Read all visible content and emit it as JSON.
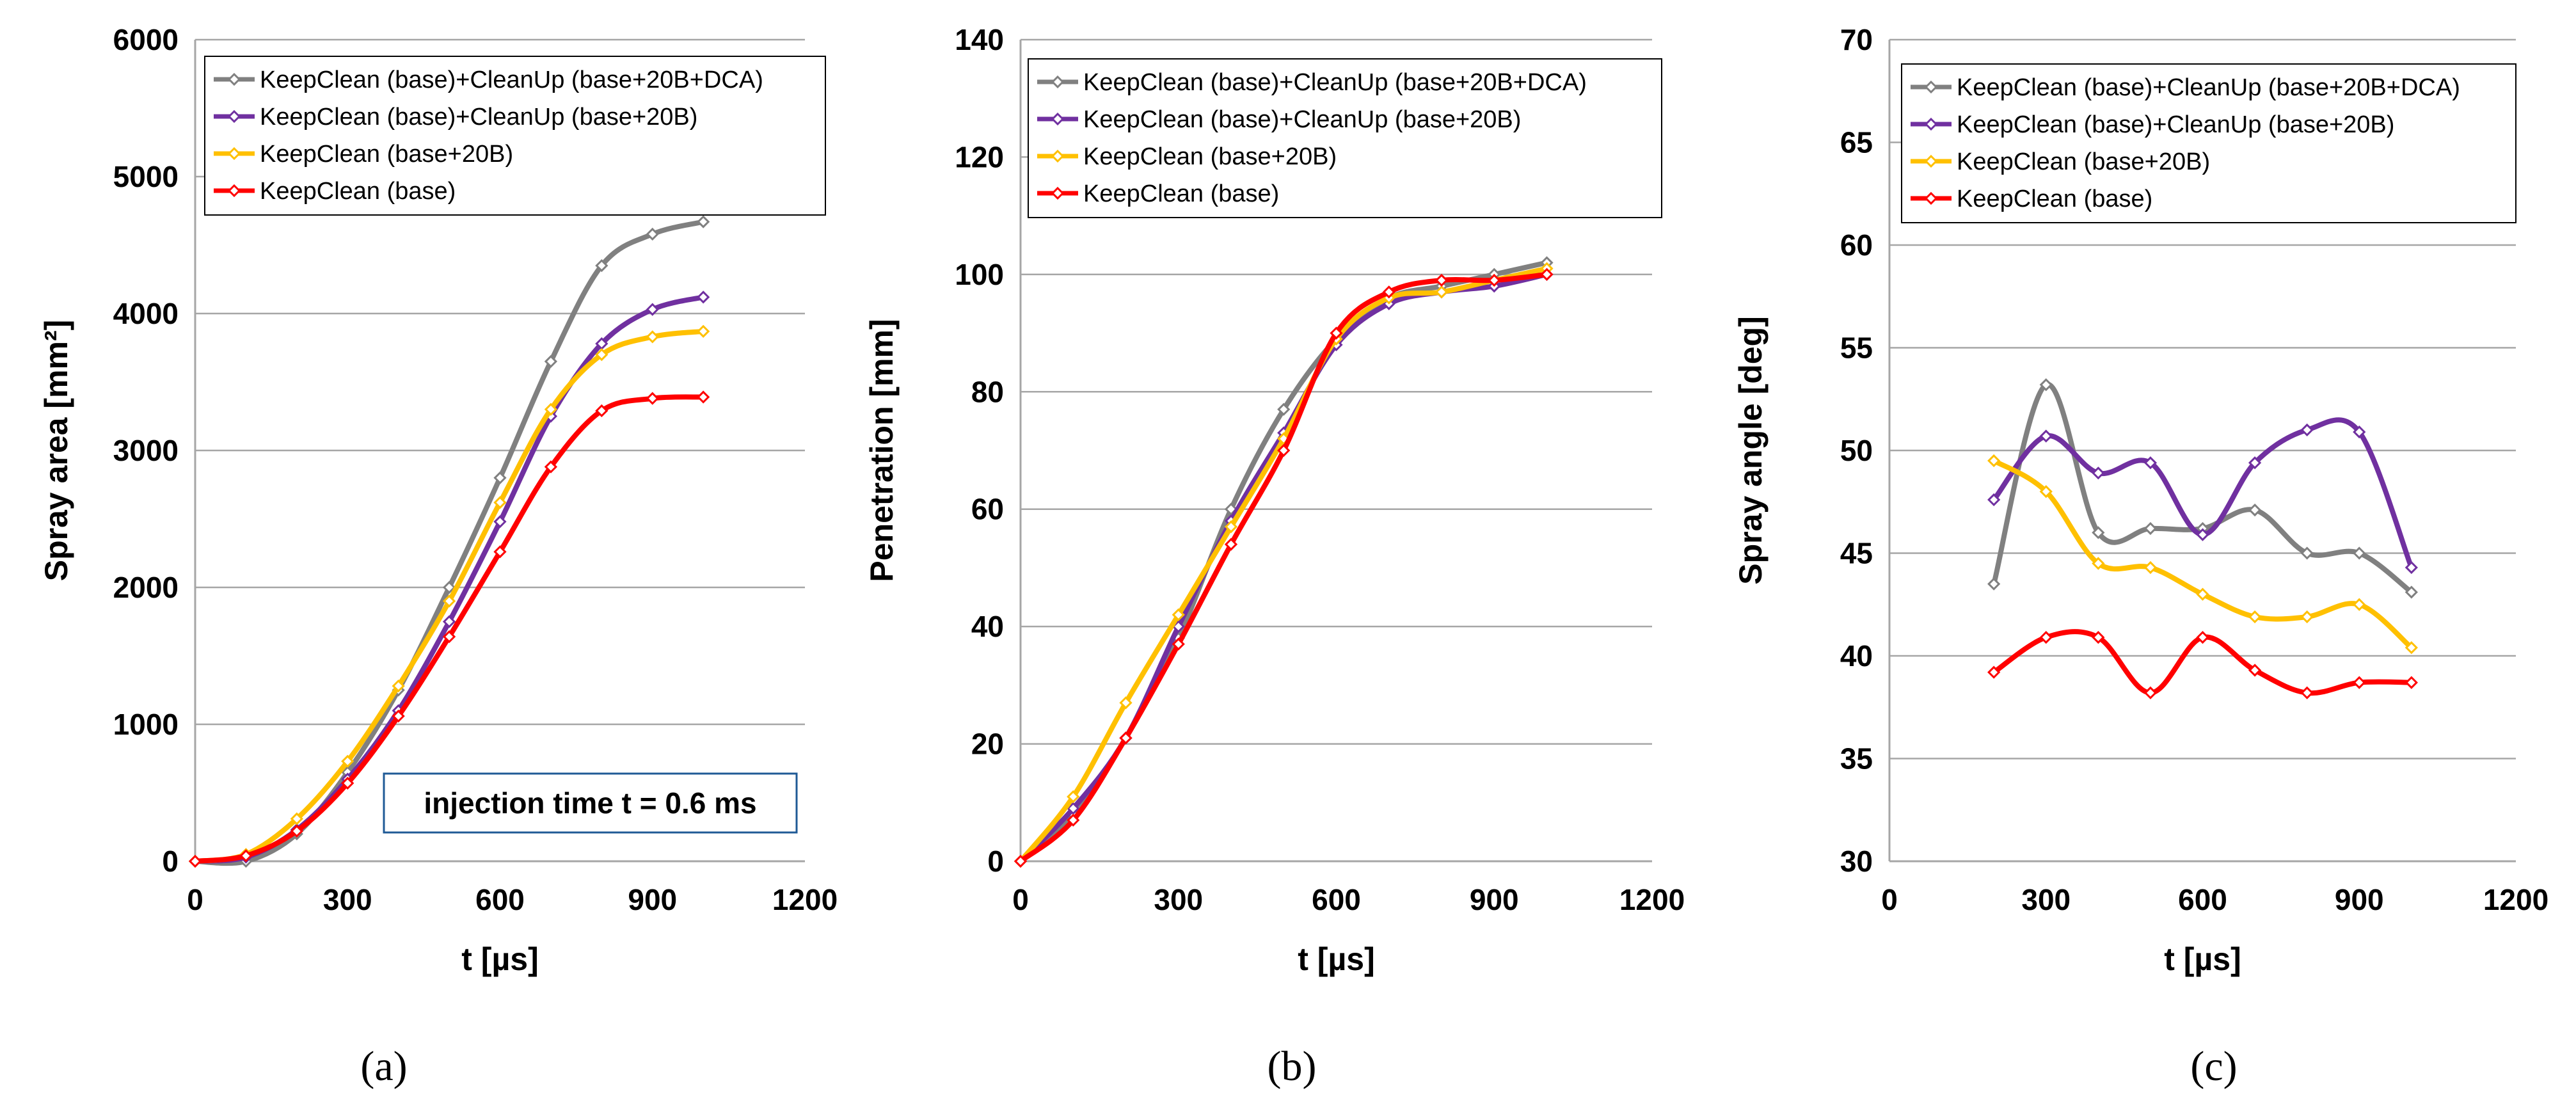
{
  "colors": {
    "gray": "#808080",
    "purple": "#7030A0",
    "yellow": "#FFC000",
    "red": "#FF0000",
    "grid": "#A6A6A6",
    "axis": "#A6A6A6",
    "annotation_border": "#1F5A96"
  },
  "legend": [
    {
      "label": "KeepClean (base)+CleanUp (base+20B+DCA)",
      "color": "#808080"
    },
    {
      "label": "KeepClean (base)+CleanUp (base+20B)",
      "color": "#7030A0"
    },
    {
      "label": "KeepClean (base+20B)",
      "color": "#FFC000"
    },
    {
      "label": "KeepClean (base)",
      "color": "#FF0000"
    }
  ],
  "chart_data": [
    {
      "type": "line",
      "panel_label": "(a)",
      "xlabel": "t [µs]",
      "ylabel": "Spray area [mm²]",
      "xlim": [
        0,
        1200
      ],
      "ylim": [
        0,
        6000
      ],
      "xticks": [
        0,
        300,
        600,
        900,
        1200
      ],
      "yticks": [
        0,
        1000,
        2000,
        3000,
        4000,
        5000,
        6000
      ],
      "legend_position": "top-right",
      "annotation": "injection time t = 0.6 ms",
      "series": [
        {
          "name": "KeepClean (base)+CleanUp (base+20B+DCA)",
          "color": "#808080",
          "x": [
            0,
            100,
            200,
            300,
            400,
            500,
            600,
            700,
            800,
            900,
            1000
          ],
          "y": [
            0,
            0,
            200,
            650,
            1250,
            2000,
            2800,
            3650,
            4350,
            4580,
            4670
          ]
        },
        {
          "name": "KeepClean (base)+CleanUp (base+20B)",
          "color": "#7030A0",
          "x": [
            0,
            100,
            200,
            300,
            400,
            500,
            600,
            700,
            800,
            900,
            1000
          ],
          "y": [
            0,
            30,
            230,
            600,
            1100,
            1750,
            2480,
            3250,
            3780,
            4030,
            4120
          ]
        },
        {
          "name": "KeepClean (base+20B)",
          "color": "#FFC000",
          "x": [
            0,
            100,
            200,
            300,
            400,
            500,
            600,
            700,
            800,
            900,
            1000
          ],
          "y": [
            0,
            50,
            310,
            730,
            1280,
            1900,
            2620,
            3300,
            3700,
            3830,
            3870
          ]
        },
        {
          "name": "KeepClean (base)",
          "color": "#FF0000",
          "x": [
            0,
            100,
            200,
            300,
            400,
            500,
            600,
            700,
            800,
            900,
            1000
          ],
          "y": [
            0,
            40,
            220,
            570,
            1060,
            1640,
            2260,
            2880,
            3290,
            3380,
            3390
          ]
        }
      ]
    },
    {
      "type": "line",
      "panel_label": "(b)",
      "xlabel": "t [µs]",
      "ylabel": "Penetration [mm]",
      "xlim": [
        0,
        1200
      ],
      "ylim": [
        0,
        140
      ],
      "xticks": [
        0,
        300,
        600,
        900,
        1200
      ],
      "yticks": [
        0,
        20,
        40,
        60,
        80,
        100,
        120,
        140
      ],
      "legend_position": "top-right",
      "series": [
        {
          "name": "KeepClean (base)+CleanUp (base+20B+DCA)",
          "color": "#808080",
          "x": [
            0,
            100,
            200,
            300,
            400,
            500,
            600,
            700,
            800,
            900,
            1000
          ],
          "y": [
            0,
            8,
            21,
            38,
            60,
            77,
            89,
            96,
            98,
            100,
            102
          ]
        },
        {
          "name": "KeepClean (base)+CleanUp (base+20B)",
          "color": "#7030A0",
          "x": [
            0,
            100,
            200,
            300,
            400,
            500,
            600,
            700,
            800,
            900,
            1000
          ],
          "y": [
            0,
            9,
            21,
            40,
            58,
            73,
            88,
            95,
            97,
            98,
            100
          ]
        },
        {
          "name": "KeepClean (base+20B)",
          "color": "#FFC000",
          "x": [
            0,
            100,
            200,
            300,
            400,
            500,
            600,
            700,
            800,
            900,
            1000
          ],
          "y": [
            0,
            11,
            27,
            42,
            57,
            72,
            89,
            96,
            97,
            99,
            101
          ]
        },
        {
          "name": "KeepClean (base)",
          "color": "#FF0000",
          "x": [
            0,
            100,
            200,
            300,
            400,
            500,
            600,
            700,
            800,
            900,
            1000
          ],
          "y": [
            0,
            7,
            21,
            37,
            54,
            70,
            90,
            97,
            99,
            99,
            100
          ]
        }
      ]
    },
    {
      "type": "line",
      "panel_label": "(c)",
      "xlabel": "t [µs]",
      "ylabel": "Spray angle [deg]",
      "xlim": [
        0,
        1200
      ],
      "ylim": [
        30,
        70
      ],
      "xticks": [
        0,
        300,
        600,
        900,
        1200
      ],
      "yticks": [
        30,
        35,
        40,
        45,
        50,
        55,
        60,
        65,
        70
      ],
      "legend_position": "top-right",
      "series": [
        {
          "name": "KeepClean (base)+CleanUp (base+20B+DCA)",
          "color": "#808080",
          "x": [
            200,
            300,
            400,
            500,
            600,
            700,
            800,
            900,
            1000
          ],
          "y": [
            43.5,
            53.2,
            46.0,
            46.2,
            46.2,
            47.1,
            45.0,
            45.0,
            43.1
          ]
        },
        {
          "name": "KeepClean (base)+CleanUp (base+20B)",
          "color": "#7030A0",
          "x": [
            200,
            300,
            400,
            500,
            600,
            700,
            800,
            900,
            1000
          ],
          "y": [
            47.6,
            50.7,
            48.9,
            49.4,
            45.9,
            49.4,
            51.0,
            50.9,
            44.3
          ]
        },
        {
          "name": "KeepClean (base+20B)",
          "color": "#FFC000",
          "x": [
            200,
            300,
            400,
            500,
            600,
            700,
            800,
            900,
            1000
          ],
          "y": [
            49.5,
            48.0,
            44.5,
            44.3,
            43.0,
            41.9,
            41.9,
            42.5,
            40.4
          ]
        },
        {
          "name": "KeepClean (base)",
          "color": "#FF0000",
          "x": [
            200,
            300,
            400,
            500,
            600,
            700,
            800,
            900,
            1000
          ],
          "y": [
            39.2,
            40.9,
            40.9,
            38.2,
            40.9,
            39.3,
            38.2,
            38.7,
            38.7
          ]
        }
      ]
    }
  ]
}
